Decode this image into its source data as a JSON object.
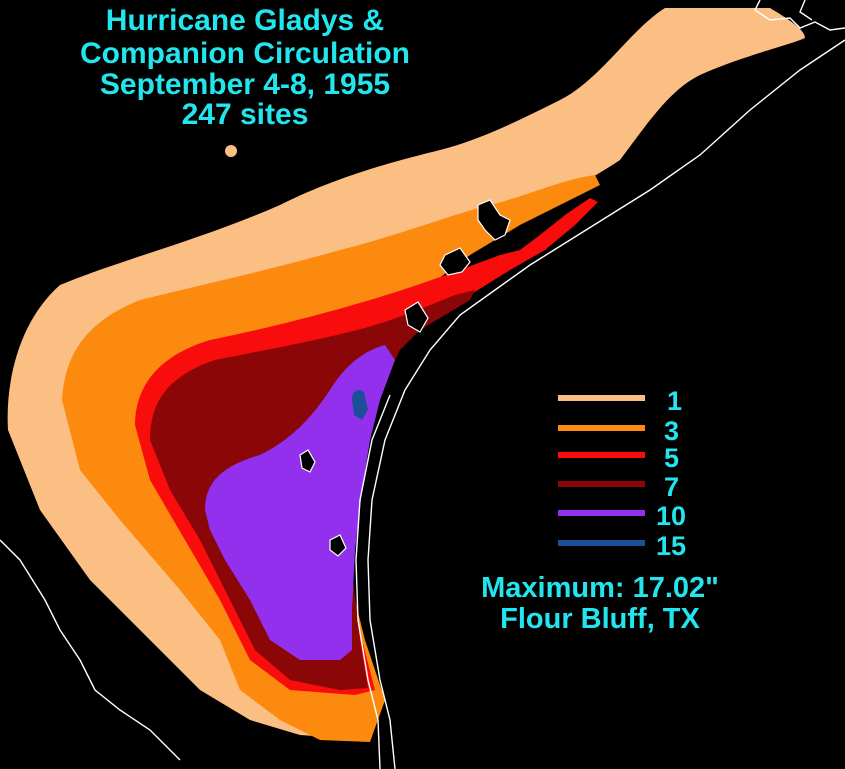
{
  "title": {
    "line1": "Hurricane Gladys &",
    "line2": "Companion Circulation",
    "line3": "September 4-8, 1955",
    "line4": "247 sites"
  },
  "legend": [
    {
      "label": "1",
      "color": "#fbbf84"
    },
    {
      "label": "3",
      "color": "#fb8a0e"
    },
    {
      "label": "5",
      "color": "#f90d0c"
    },
    {
      "label": "7",
      "color": "#8b0606"
    },
    {
      "label": "10",
      "color": "#9330ee"
    },
    {
      "label": "15",
      "color": "#1d4f99"
    }
  ],
  "maximum": {
    "line1": "Maximum:  17.02\"",
    "line2": "Flour Bluff, TX"
  },
  "colors": {
    "background": "#000000",
    "text": "#22e5ee",
    "coastline": "#ffffff"
  }
}
